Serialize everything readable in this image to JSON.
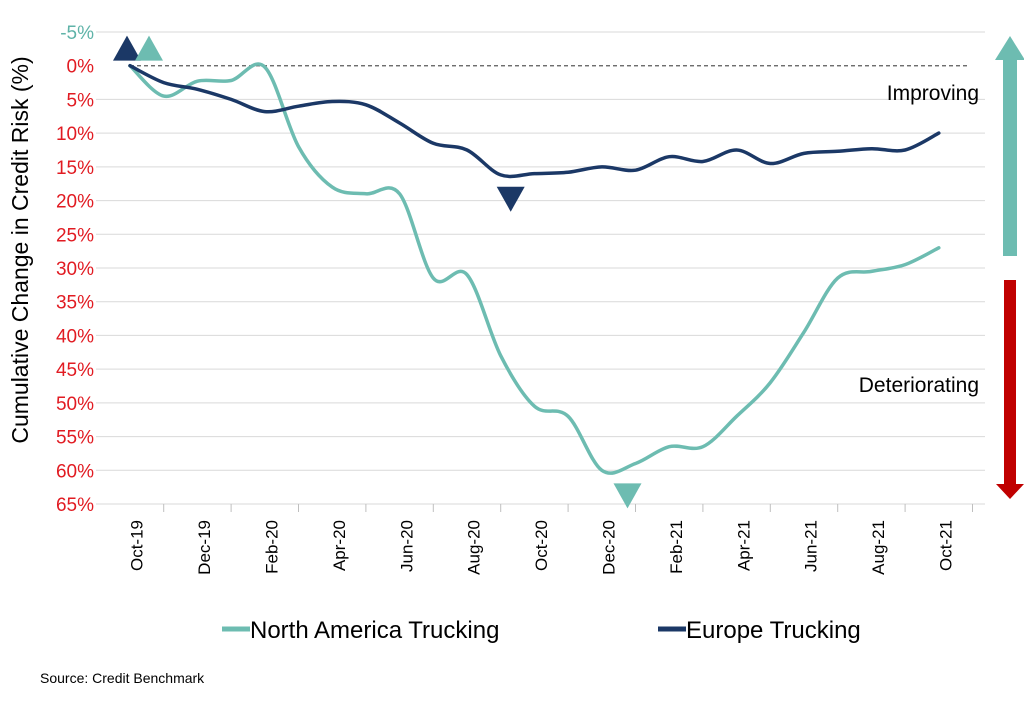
{
  "chart_data": {
    "type": "line",
    "title": "",
    "ylabel": "Cumulative Change in Credit Risk (%)",
    "xlabel": "",
    "source": "Source: Credit Benchmark",
    "ylim": [
      -5,
      65
    ],
    "y_inverted": true,
    "y_ticks": [
      -5,
      0,
      5,
      10,
      15,
      20,
      25,
      30,
      35,
      40,
      45,
      50,
      55,
      60,
      65
    ],
    "y_tick_labels": [
      "-5%",
      "0%",
      "5%",
      "10%",
      "15%",
      "20%",
      "25%",
      "30%",
      "35%",
      "40%",
      "45%",
      "50%",
      "55%",
      "60%",
      "65%"
    ],
    "y_tick_colors": {
      "negative": "#5fb3a8",
      "nonnegative": "#e11b22"
    },
    "x_ticks": [
      "Oct-19",
      "Dec-19",
      "Feb-20",
      "Apr-20",
      "Jun-20",
      "Aug-20",
      "Oct-20",
      "Dec-20",
      "Feb-21",
      "Apr-21",
      "Jun-21",
      "Aug-21",
      "Oct-21"
    ],
    "x": [
      "2019-09",
      "2019-10",
      "2019-11",
      "2019-12",
      "2020-01",
      "2020-02",
      "2020-03",
      "2020-04",
      "2020-05",
      "2020-06",
      "2020-07",
      "2020-08",
      "2020-09",
      "2020-10",
      "2020-11",
      "2020-12",
      "2021-01",
      "2021-02",
      "2021-03",
      "2021-04",
      "2021-05",
      "2021-06",
      "2021-07",
      "2021-08",
      "2021-09"
    ],
    "series": [
      {
        "name": "North America Trucking",
        "color": "#6dbcb1",
        "values": [
          0,
          4.5,
          2.3,
          2.2,
          0.2,
          12,
          18,
          19,
          19,
          31.5,
          31,
          43,
          50.5,
          52,
          60,
          59,
          56.5,
          56.5,
          52,
          47,
          39.5,
          31.5,
          30.5,
          29.5,
          27
        ]
      },
      {
        "name": "Europe Trucking",
        "color": "#1b3866",
        "values": [
          0,
          2.5,
          3.5,
          5,
          6.8,
          6,
          5.3,
          5.8,
          8.5,
          11.5,
          12.5,
          16.2,
          16,
          15.8,
          15,
          15.5,
          13.5,
          14.2,
          12.5,
          14.5,
          13,
          12.7,
          12.3,
          12.5,
          10
        ]
      }
    ],
    "markers": [
      {
        "series": "Europe Trucking",
        "direction": "up",
        "x": "2019-09",
        "y": -2.6,
        "color": "#1b3866"
      },
      {
        "series": "North America Trucking",
        "direction": "up",
        "x": "2019-09",
        "y": -2.6,
        "color": "#6dbcb1"
      },
      {
        "series": "Europe Trucking",
        "direction": "down",
        "x": "2020-08",
        "y": 19.8,
        "color": "#1b3866"
      },
      {
        "series": "North America Trucking",
        "direction": "down",
        "x": "2020-12",
        "y": 63.8,
        "color": "#6dbcb1"
      }
    ],
    "annotations": [
      {
        "text": "Improving",
        "color": "#6dbcb1"
      },
      {
        "text": "Deteriorating",
        "color": "#c00000"
      }
    ],
    "legend_position": "bottom",
    "grid": true,
    "zero_line": "dashed"
  }
}
